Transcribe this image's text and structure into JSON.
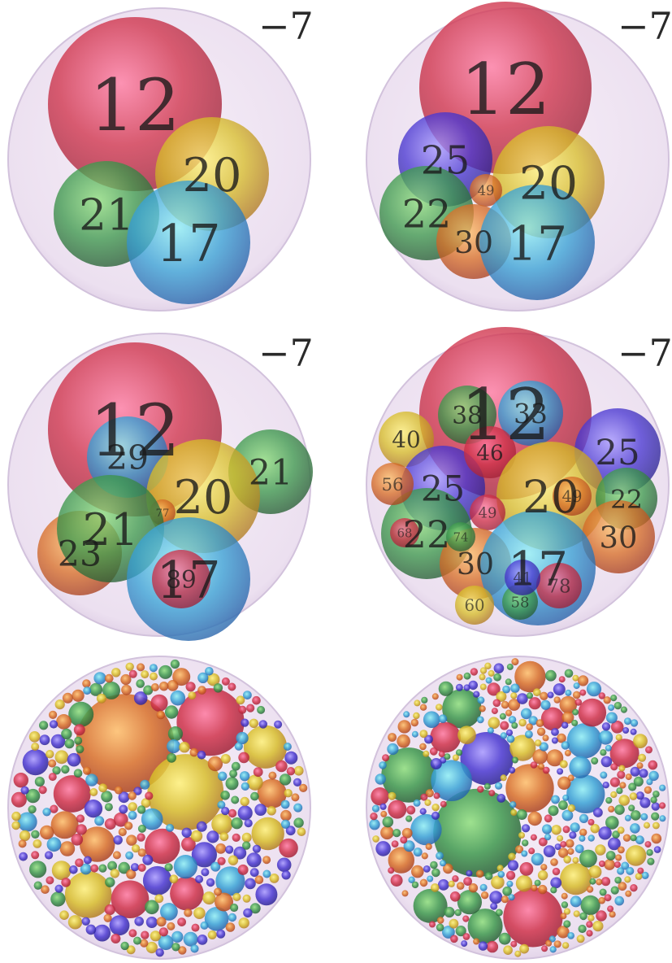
{
  "panels": [
    {
      "id": "p1",
      "label": "−7",
      "spheres": [
        {
          "n": "12",
          "c": "red"
        },
        {
          "n": "20",
          "c": "yellow"
        },
        {
          "n": "21",
          "c": "green"
        },
        {
          "n": "17",
          "c": "blue"
        }
      ]
    },
    {
      "id": "p2",
      "label": "−7",
      "spheres": [
        {
          "n": "12",
          "c": "red"
        },
        {
          "n": "25",
          "c": "violet"
        },
        {
          "n": "20",
          "c": "yellow"
        },
        {
          "n": "49",
          "c": "orange"
        },
        {
          "n": "22",
          "c": "green"
        },
        {
          "n": "30",
          "c": "orange"
        },
        {
          "n": "17",
          "c": "blue"
        }
      ]
    },
    {
      "id": "p3",
      "label": "−7",
      "spheres": [
        {
          "n": "12",
          "c": "red"
        },
        {
          "n": "29",
          "c": "blue"
        },
        {
          "n": "21",
          "c": "green"
        },
        {
          "n": "20",
          "c": "yellow"
        },
        {
          "n": "77",
          "c": "orange"
        },
        {
          "n": "23",
          "c": "orange"
        },
        {
          "n": "21",
          "c": "green"
        },
        {
          "n": "17",
          "c": "blue"
        },
        {
          "n": "89",
          "c": "red"
        }
      ]
    },
    {
      "id": "p4",
      "label": "−7",
      "spheres": [
        {
          "n": "12",
          "c": "red"
        },
        {
          "n": "38",
          "c": "green"
        },
        {
          "n": "33",
          "c": "blue"
        },
        {
          "n": "25",
          "c": "violet"
        },
        {
          "n": "40",
          "c": "yellow"
        },
        {
          "n": "25",
          "c": "violet"
        },
        {
          "n": "46",
          "c": "red"
        },
        {
          "n": "20",
          "c": "yellow"
        },
        {
          "n": "22",
          "c": "green"
        },
        {
          "n": "49",
          "c": "orange"
        },
        {
          "n": "30",
          "c": "orange"
        },
        {
          "n": "49",
          "c": "red"
        },
        {
          "n": "22",
          "c": "green"
        },
        {
          "n": "30",
          "c": "orange"
        },
        {
          "n": "17",
          "c": "blue"
        },
        {
          "n": "78",
          "c": "red"
        },
        {
          "n": "58",
          "c": "green"
        },
        {
          "n": "60",
          "c": "yellow"
        },
        {
          "n": "41",
          "c": "violet"
        },
        {
          "n": "56",
          "c": "orange"
        },
        {
          "n": "68",
          "c": "red"
        },
        {
          "n": "74",
          "c": "green"
        }
      ]
    }
  ],
  "colors": {
    "red": "#d0334b",
    "yellow": "#d8be2c",
    "green": "#3f9a4e",
    "blue": "#3aa3d6",
    "violet": "#4b39d2",
    "orange": "#d9712a",
    "container": "#e7d6ec"
  }
}
